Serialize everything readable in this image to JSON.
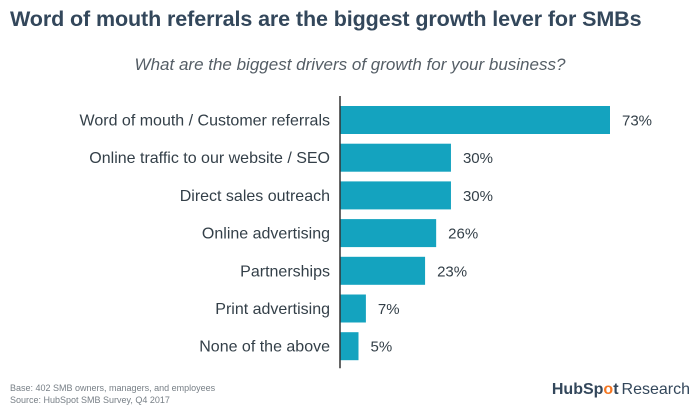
{
  "title": "Word of mouth referrals are the biggest growth lever for SMBs",
  "subtitle": "What are the biggest drivers of growth for your business?",
  "chart_data": {
    "type": "bar",
    "orientation": "horizontal",
    "categories": [
      "Word of mouth / Customer referrals",
      "Online traffic to our website / SEO",
      "Direct sales outreach",
      "Online advertising",
      "Partnerships",
      "Print advertising",
      "None of the above"
    ],
    "values": [
      73,
      30,
      30,
      26,
      23,
      7,
      5
    ],
    "value_labels": [
      "73%",
      "30%",
      "30%",
      "26%",
      "23%",
      "7%",
      "5%"
    ],
    "unit": "%",
    "xlim": [
      0,
      73
    ],
    "bar_color": "#14a3bf",
    "axis_color": "#333333",
    "grid": false,
    "legend": "none"
  },
  "footer": {
    "base": "Base: 402 SMB owners, managers, and employees",
    "source": "Source: HubSpot SMB Survey, Q4 2017",
    "logo_brand_left": "HubSp",
    "logo_sprocket": "o",
    "logo_brand_right": "t",
    "logo_research": "Research"
  }
}
